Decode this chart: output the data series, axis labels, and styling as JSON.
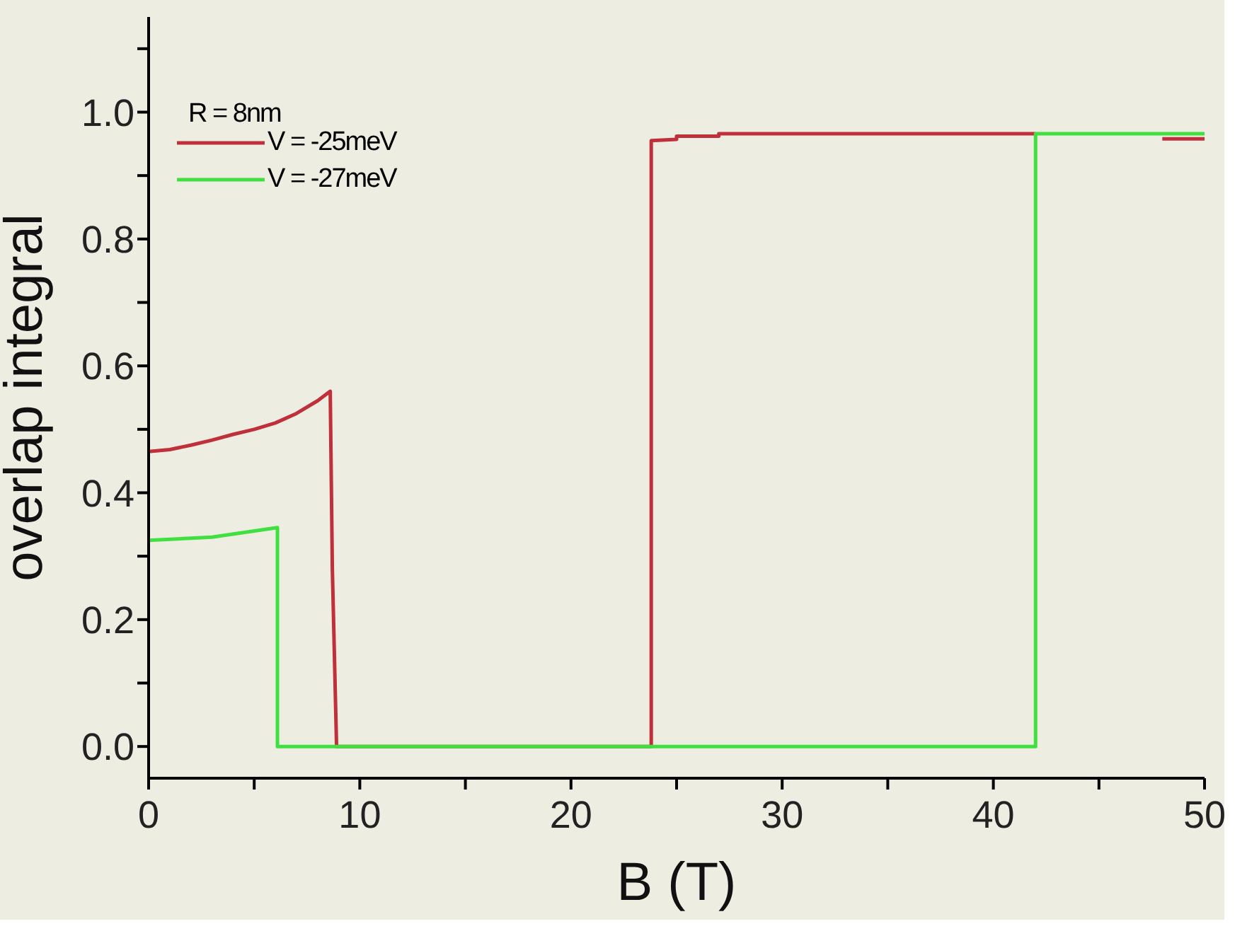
{
  "chart_data": {
    "type": "line",
    "xlabel": "B (T)",
    "ylabel": "overlap integral",
    "annotations": [
      "R = 8nm"
    ],
    "xlim": [
      0,
      50
    ],
    "xticks": [
      0,
      {
        "value": 5,
        "label": null
      },
      10,
      {
        "value": 15,
        "label": null
      },
      20,
      {
        "value": 25,
        "label": null
      },
      30,
      {
        "value": 35,
        "label": null
      },
      40,
      {
        "value": 45,
        "label": null
      },
      50
    ],
    "ylim": [
      -0.05,
      1.15
    ],
    "yticks": [
      {
        "value": 0,
        "label": "0.0"
      },
      {
        "value": 0.1,
        "label": null
      },
      {
        "value": 0.2,
        "label": "0.2"
      },
      {
        "value": 0.3,
        "label": null
      },
      {
        "value": 0.4,
        "label": "0.4"
      },
      {
        "value": 0.5,
        "label": null
      },
      {
        "value": 0.6,
        "label": "0.6"
      },
      {
        "value": 0.7,
        "label": null
      },
      {
        "value": 0.8,
        "label": "0.8"
      },
      {
        "value": 0.9,
        "label": null
      },
      {
        "value": 1.0,
        "label": "1.0"
      },
      {
        "value": 1.1,
        "label": null
      }
    ],
    "grid": false,
    "legend": "top left",
    "marker": "none",
    "line_style": "solid",
    "series": [
      {
        "name": "V = -25meV",
        "color": "#c0303a",
        "x": [
          0,
          1,
          2,
          3,
          4,
          5,
          6,
          7,
          8,
          8.6,
          8.7,
          8.9,
          23.8,
          23.8,
          25,
          25,
          27,
          27,
          42,
          45,
          48,
          50
        ],
        "values": [
          0.465,
          0.468,
          0.475,
          0.483,
          0.492,
          0.5,
          0.51,
          0.525,
          0.545,
          0.56,
          0.28,
          0,
          0,
          0.955,
          0.957,
          0.962,
          0.962,
          0.966,
          0.966,
          null,
          0.958,
          0.958
        ]
      },
      {
        "name": "V = -27meV",
        "color": "#40e040",
        "x": [
          0,
          3,
          6.1,
          6.1,
          42,
          42,
          50
        ],
        "values": [
          0.325,
          0.33,
          0.345,
          0,
          0,
          0.966,
          0.966
        ]
      }
    ]
  }
}
